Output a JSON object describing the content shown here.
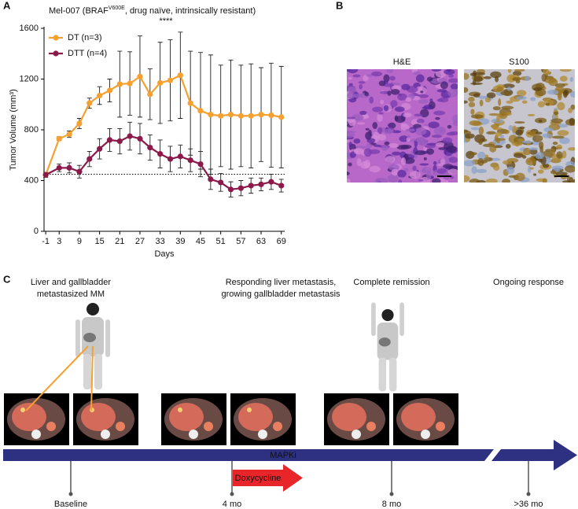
{
  "panels": [
    "A",
    "B",
    "C"
  ],
  "chart_data": {
    "type": "line",
    "title": [
      "Mel-007 (BRAF",
      "V600E",
      ", drug naïve, intrinsically resistant)"
    ],
    "xlabel": "Days",
    "ylabel": "Tumor Volume (mm³)",
    "annotation": "****",
    "x": [
      -1,
      3,
      6,
      9,
      12,
      15,
      18,
      21,
      24,
      27,
      30,
      33,
      36,
      39,
      42,
      45,
      48,
      51,
      54,
      57,
      60,
      63,
      66,
      69
    ],
    "series": [
      {
        "name": "DT (n=3)",
        "color": "#f5a030",
        "values": [
          445,
          730,
          765,
          850,
          1010,
          1070,
          1110,
          1160,
          1165,
          1220,
          1080,
          1170,
          1190,
          1230,
          1010,
          950,
          920,
          910,
          920,
          910,
          910,
          920,
          915,
          900
        ],
        "errors": [
          10,
          15,
          25,
          40,
          40,
          70,
          90,
          260,
          250,
          320,
          200,
          320,
          320,
          340,
          410,
          460,
          470,
          400,
          430,
          400,
          410,
          370,
          410,
          400
        ]
      },
      {
        "name": "DTT (n=4)",
        "color": "#8b1a4a",
        "values": [
          445,
          500,
          500,
          470,
          570,
          650,
          720,
          710,
          750,
          730,
          660,
          610,
          570,
          590,
          560,
          530,
          410,
          385,
          330,
          340,
          360,
          370,
          390,
          360
        ],
        "errors": [
          20,
          30,
          40,
          50,
          60,
          80,
          90,
          100,
          110,
          120,
          100,
          110,
          100,
          90,
          90,
          100,
          80,
          70,
          60,
          60,
          60,
          50,
          60,
          50
        ]
      }
    ],
    "reference_line": 450,
    "xlim": [
      -1.5,
      70
    ],
    "ylim": [
      0,
      1600
    ],
    "xticks": [
      -1,
      3,
      9,
      15,
      21,
      27,
      33,
      39,
      45,
      51,
      57,
      63,
      69
    ],
    "yticks": [
      0,
      400,
      800,
      1200,
      1600
    ],
    "legend": "upper left"
  },
  "histology": {
    "stains": [
      "H&E",
      "S100"
    ]
  },
  "timeline": {
    "events": [
      {
        "heading": [
          "Liver and gallbladder",
          "metastasized MM"
        ],
        "time": "Baseline"
      },
      {
        "heading": [
          "Responding liver metastasis,",
          "growing gallbladder metastasis"
        ],
        "time": "4 mo"
      },
      {
        "heading": [
          "Complete remission"
        ],
        "time": "8 mo"
      },
      {
        "heading": [
          "Ongoing response"
        ],
        "time": ">36 mo"
      }
    ],
    "therapy": "MAPKi",
    "added_therapy": "Doxycycline"
  }
}
